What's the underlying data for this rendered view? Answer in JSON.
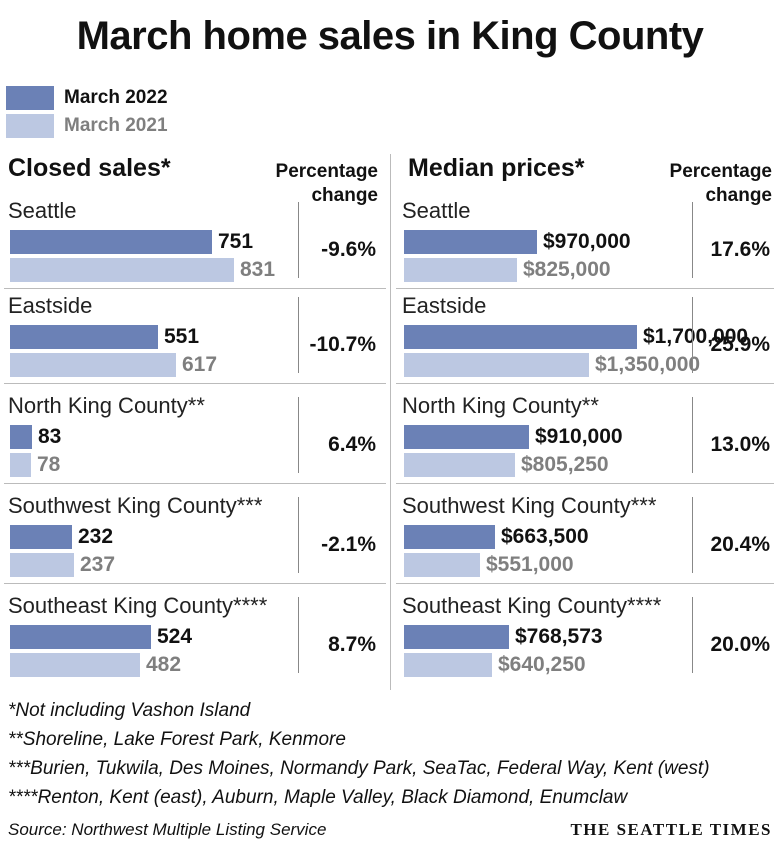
{
  "title": "March home sales in King County",
  "colors": {
    "current": "#6b81b6",
    "previous": "#bcc8e2",
    "current_text": "#111111",
    "previous_text": "#7f7f7f"
  },
  "chart_data": [
    {
      "type": "bar",
      "orientation": "horizontal",
      "title": "Closed sales*",
      "pct_header": [
        "Percentage",
        "change"
      ],
      "categories": [
        "Seattle",
        "Eastside",
        "North King County**",
        "Southwest King County***",
        "Southeast King County****"
      ],
      "series": [
        {
          "name": "March 2022",
          "values": [
            751,
            551,
            83,
            232,
            524
          ],
          "labels": [
            "751",
            "551",
            "83",
            "232",
            "524"
          ]
        },
        {
          "name": "March 2021",
          "values": [
            831,
            617,
            78,
            237,
            482
          ],
          "labels": [
            "831",
            "617",
            "78",
            "237",
            "482"
          ]
        }
      ],
      "pct_change": [
        "-9.6%",
        "-10.7%",
        "6.4%",
        "-2.1%",
        "8.7%"
      ],
      "xlim": [
        0,
        1040
      ]
    },
    {
      "type": "bar",
      "orientation": "horizontal",
      "title": "Median prices*",
      "pct_header": [
        "Percentage",
        "change"
      ],
      "categories": [
        "Seattle",
        "Eastside",
        "North King County**",
        "Southwest King County***",
        "Southeast King County****"
      ],
      "series": [
        {
          "name": "March 2022",
          "values": [
            970000,
            1700000,
            910000,
            663500,
            768573
          ],
          "labels": [
            "$970,000",
            "$1,700,000",
            "$910,000",
            "$663,500",
            "$768,573"
          ]
        },
        {
          "name": "March 2021",
          "values": [
            825000,
            1350000,
            805250,
            551000,
            640250
          ],
          "labels": [
            "$825,000",
            "$1,350,000",
            "$805,250",
            "$551,000",
            "$640,250"
          ]
        }
      ],
      "pct_change": [
        "17.6%",
        "25.9%",
        "13.0%",
        "20.4%",
        "20.0%"
      ],
      "xlim": [
        0,
        2040000
      ]
    }
  ],
  "legend": [
    "March 2022",
    "March 2021"
  ],
  "footnotes": [
    "*Not including Vashon Island",
    "**Shoreline, Lake Forest Park, Kenmore",
    "***Burien, Tukwila, Des Moines, Normandy Park, SeaTac, Federal Way, Kent (west)",
    "****Renton, Kent (east), Auburn, Maple Valley, Black Diamond, Enumclaw"
  ],
  "source": "Source: Northwest Multiple Listing Service",
  "brand": "THE SEATTLE TIMES"
}
